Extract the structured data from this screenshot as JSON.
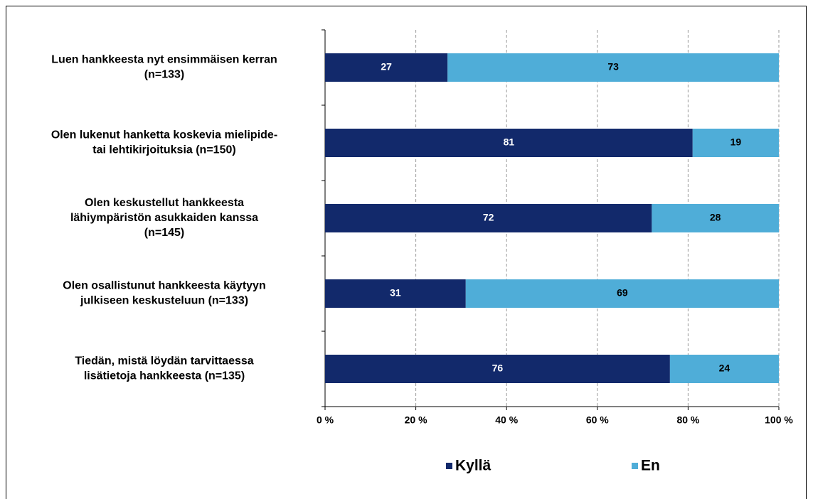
{
  "chart_data": {
    "type": "stacked_bar_horizontal",
    "categories": [
      [
        "Luen hankkeesta nyt ensimmäisen kerran",
        "(n=133)"
      ],
      [
        "Olen lukenut hanketta koskevia mielipide-",
        "tai lehtikirjoituksia (n=150)"
      ],
      [
        "Olen keskustellut hankkeesta",
        "lähiympäristön asukkaiden kanssa",
        "(n=145)"
      ],
      [
        "Olen osallistunut hankkeesta käytyyn",
        "julkiseen keskusteluun (n=133)"
      ],
      [
        "Tiedän, mistä löydän tarvittaessa",
        "lisätietoja hankkeesta (n=135)"
      ]
    ],
    "series": [
      {
        "name": "Kyllä",
        "color": "#12296b",
        "values": [
          27,
          81,
          72,
          31,
          76
        ]
      },
      {
        "name": "En",
        "color": "#4fadd8",
        "values": [
          73,
          19,
          28,
          69,
          24
        ]
      }
    ],
    "xlim": [
      0,
      100
    ],
    "xticks": [
      {
        "value": 0,
        "label": "0 %"
      },
      {
        "value": 20,
        "label": "20 %"
      },
      {
        "value": 40,
        "label": "40 %"
      },
      {
        "value": 60,
        "label": "60 %"
      },
      {
        "value": 80,
        "label": "80 %"
      },
      {
        "value": 100,
        "label": "100 %"
      }
    ],
    "grid": true,
    "legend": "bottom"
  }
}
